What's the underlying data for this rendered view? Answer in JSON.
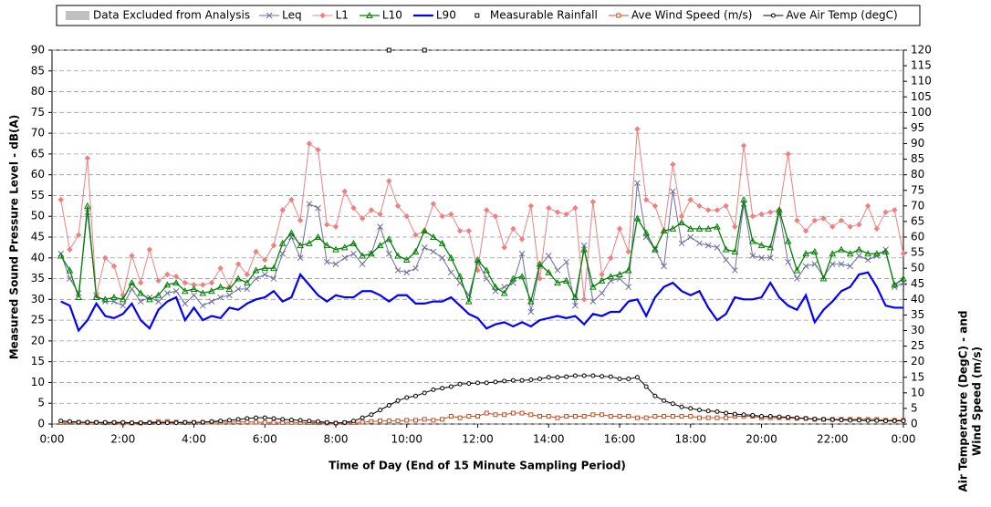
{
  "chart_data": {
    "type": "line",
    "xlabel": "Time of Day (End of 15 Minute Sampling Period)",
    "ylabel": "Measured Sound Pressure Level - dB(A)",
    "y2label": [
      "Air Temperature (DegC) - and",
      "Wind Speed (m/s)"
    ],
    "excluded_legend": {
      "name": "Data Excluded from Analysis",
      "color": "#c0c0c0"
    },
    "xlim": [
      0,
      24
    ],
    "xticks": [
      {
        "value": 0,
        "label": "0:00"
      },
      {
        "value": 2,
        "label": "2:00"
      },
      {
        "value": 4,
        "label": "4:00"
      },
      {
        "value": 6,
        "label": "6:00"
      },
      {
        "value": 8,
        "label": "8:00"
      },
      {
        "value": 10,
        "label": "10:00"
      },
      {
        "value": 12,
        "label": "12:00"
      },
      {
        "value": 14,
        "label": "14:00"
      },
      {
        "value": 16,
        "label": "16:00"
      },
      {
        "value": 18,
        "label": "18:00"
      },
      {
        "value": 20,
        "label": "20:00"
      },
      {
        "value": 22,
        "label": "22:00"
      },
      {
        "value": 24,
        "label": "0:00"
      }
    ],
    "ylim": [
      0,
      90
    ],
    "yticks": [
      0,
      5,
      10,
      15,
      20,
      25,
      30,
      35,
      40,
      45,
      50,
      55,
      60,
      65,
      70,
      75,
      80,
      85,
      90
    ],
    "y2lim": [
      0,
      120
    ],
    "y2ticks": [
      0,
      5,
      10,
      15,
      20,
      25,
      30,
      35,
      40,
      45,
      50,
      55,
      60,
      65,
      70,
      75,
      80,
      85,
      90,
      95,
      100,
      105,
      110,
      115,
      120
    ],
    "grid": true,
    "x": [
      0.25,
      0.5,
      0.75,
      1,
      1.25,
      1.5,
      1.75,
      2,
      2.25,
      2.5,
      2.75,
      3,
      3.25,
      3.5,
      3.75,
      4,
      4.25,
      4.5,
      4.75,
      5,
      5.25,
      5.5,
      5.75,
      6,
      6.25,
      6.5,
      6.75,
      7,
      7.25,
      7.5,
      7.75,
      8,
      8.25,
      8.5,
      8.75,
      9,
      9.25,
      9.5,
      9.75,
      10,
      10.25,
      10.5,
      10.75,
      11,
      11.25,
      11.5,
      11.75,
      12,
      12.25,
      12.5,
      12.75,
      13,
      13.25,
      13.5,
      13.75,
      14,
      14.25,
      14.5,
      14.75,
      15,
      15.25,
      15.5,
      15.75,
      16,
      16.25,
      16.5,
      16.75,
      17,
      17.25,
      17.5,
      17.75,
      18,
      18.25,
      18.5,
      18.75,
      19,
      19.25,
      19.5,
      19.75,
      20,
      20.25,
      20.5,
      20.75,
      21,
      21.25,
      21.5,
      21.75,
      22,
      22.25,
      22.5,
      22.75,
      23,
      23.25,
      23.5,
      23.75,
      24
    ],
    "series": [
      {
        "name": "Leq",
        "color": "#6e6e9e",
        "marker": "x",
        "width": 1,
        "values": [
          41,
          35,
          31.5,
          51,
          31,
          29.5,
          29.5,
          28.5,
          32.5,
          29.5,
          30.5,
          29.5,
          31.5,
          32,
          29,
          31,
          28.5,
          29.5,
          30.5,
          31,
          32.5,
          32.5,
          35,
          36,
          35,
          41,
          45,
          40,
          53,
          52,
          39,
          38.5,
          40,
          41,
          38.5,
          41,
          47.5,
          41,
          37,
          36.5,
          37.5,
          42.5,
          41.5,
          40,
          36.5,
          34,
          31,
          39,
          35,
          32,
          33,
          34,
          41,
          27,
          38,
          40.5,
          37,
          39,
          28.5,
          43,
          29.5,
          31.5,
          34.5,
          35,
          33,
          58,
          45,
          42,
          38,
          56,
          43.5,
          45,
          43.5,
          43,
          42.5,
          39.5,
          37,
          53,
          40.5,
          40,
          40,
          51,
          39,
          35,
          38,
          38.5,
          35.5,
          38.5,
          38.5,
          38,
          40.5,
          39.5,
          40.5,
          42,
          33,
          34
        ]
      },
      {
        "name": "L1",
        "color": "#f08080",
        "marker": "diamond",
        "width": 1,
        "values": [
          54,
          42,
          45.5,
          64,
          31,
          40,
          38,
          31,
          40.5,
          34,
          42,
          34.5,
          36,
          35.5,
          34,
          33.5,
          33.5,
          34,
          37.5,
          33,
          38.5,
          36,
          41.5,
          39.5,
          43,
          51.5,
          54,
          49,
          67.5,
          66,
          48,
          47.5,
          56,
          52,
          49.5,
          51.5,
          50.5,
          58.5,
          52.5,
          50,
          45.5,
          46.5,
          53,
          50,
          50.5,
          46.5,
          46.5,
          37,
          51.5,
          50,
          42.5,
          47,
          44.5,
          52.5,
          35,
          52,
          51,
          50.5,
          52,
          30,
          53.5,
          36,
          40,
          47,
          41.5,
          71,
          54,
          52.5,
          46.5,
          62.5,
          50,
          54,
          52.5,
          51.5,
          51.5,
          52.5,
          47.5,
          67,
          50,
          50.5,
          51,
          51.5,
          65,
          49,
          46.5,
          49,
          49.5,
          47.5,
          49,
          47.5,
          48,
          52.5,
          47,
          51,
          51.5,
          41
        ]
      },
      {
        "name": "L10",
        "color": "#008000",
        "marker": "triangle",
        "width": 1.3,
        "values": [
          40.5,
          37,
          30.5,
          52.5,
          30.5,
          30,
          30.5,
          30,
          34,
          31.5,
          30,
          31,
          33.5,
          34,
          32,
          32.5,
          31.5,
          32,
          33,
          32.5,
          35,
          34,
          37,
          37.5,
          37.5,
          43.5,
          46,
          43,
          43.5,
          45,
          43,
          42,
          42.5,
          43.5,
          40.5,
          41,
          43,
          44.5,
          40.5,
          39.5,
          41.5,
          46.5,
          45,
          43.5,
          40,
          35.5,
          29.5,
          39.5,
          37,
          33,
          31.5,
          35,
          35.5,
          29.5,
          38.5,
          36.5,
          34,
          34.5,
          30.5,
          42,
          33,
          34.5,
          35.5,
          36,
          37,
          49.5,
          46,
          42,
          46.5,
          47,
          48.5,
          47,
          47,
          47,
          47.5,
          42,
          41.5,
          54,
          44,
          43,
          42.5,
          51.5,
          44,
          37,
          41,
          41.5,
          35,
          41,
          42,
          41,
          42,
          41,
          41,
          41.5,
          33.5,
          35
        ]
      },
      {
        "name": "L90",
        "color": "#0000ff",
        "marker": "none",
        "width": 2.2,
        "values": [
          29.5,
          28.5,
          22.5,
          25,
          29,
          26,
          25.5,
          26.5,
          29,
          25,
          23,
          27.5,
          29.5,
          30.5,
          25,
          28,
          25,
          26,
          25.5,
          28,
          27.5,
          29,
          30,
          30.5,
          32,
          29.5,
          30.5,
          36,
          33.5,
          31,
          29.5,
          31,
          30.5,
          30.5,
          32,
          32,
          31,
          29.5,
          31,
          31,
          29,
          29,
          29.5,
          29.5,
          30.5,
          28.5,
          26.5,
          25.5,
          23,
          24,
          24.5,
          23.5,
          24.5,
          23.5,
          25,
          25.5,
          26,
          25.5,
          26,
          24,
          26.5,
          26,
          27,
          27,
          29.5,
          30,
          26,
          30.5,
          33,
          34,
          32,
          31,
          32,
          28,
          25,
          26.5,
          30.5,
          30,
          30,
          30.5,
          34,
          30.5,
          28.5,
          27.5,
          31,
          24.5,
          27.5,
          29.5,
          32,
          33,
          36,
          36.5,
          33,
          28.5,
          28,
          28
        ]
      },
      {
        "name": "Measurable Rainfall",
        "color": "#000000",
        "marker": "square",
        "width": 0,
        "x": [
          9.5,
          10.5
        ],
        "values": [
          90,
          90
        ]
      },
      {
        "name": "Ave Wind Speed (m/s)",
        "color": "#c05020",
        "marker": "square",
        "width": 1,
        "axis": "y2",
        "values": [
          0.5,
          0.5,
          0.5,
          0.4,
          0.5,
          0.4,
          0.4,
          0.3,
          0.3,
          0.3,
          0.5,
          0.8,
          0.8,
          0.6,
          0.5,
          0.5,
          0.5,
          0.6,
          0.6,
          0.6,
          0.7,
          0.7,
          0.6,
          0.5,
          0.5,
          0.5,
          0.5,
          0.5,
          0.5,
          0.4,
          0.3,
          0.3,
          0.4,
          0.5,
          0.6,
          0.8,
          1,
          1,
          1,
          1.2,
          1.2,
          1.5,
          1.2,
          1.5,
          2.5,
          2,
          2.5,
          2.5,
          3.5,
          3,
          3,
          3.5,
          3.5,
          3,
          2.5,
          2.5,
          2,
          2.5,
          2.5,
          2.5,
          3,
          3,
          2.5,
          2.5,
          2.5,
          2,
          2,
          2.5,
          2.5,
          2.5,
          2.5,
          2.5,
          2,
          2,
          2,
          2,
          2.5,
          2.5,
          2.5,
          2,
          2,
          2,
          2,
          1.8,
          1.8,
          1.5,
          1.5,
          1.5,
          1.5,
          1.5,
          1.5,
          1.5,
          1.5,
          1.2,
          1.2,
          1.2
        ]
      },
      {
        "name": "Ave Air Temp (degC)",
        "color": "#000000",
        "marker": "circle",
        "width": 1,
        "axis": "y2",
        "values": [
          1,
          0.8,
          0.6,
          0.6,
          0.5,
          0.5,
          0.5,
          0.5,
          0.4,
          0.4,
          0.4,
          0.4,
          0.4,
          0.4,
          0.5,
          0.5,
          0.6,
          0.8,
          1,
          1.2,
          1.5,
          1.8,
          2,
          2,
          1.8,
          1.5,
          1.3,
          1.2,
          1,
          0.8,
          0.5,
          0.3,
          0.5,
          1,
          2,
          3,
          4.5,
          6,
          7.5,
          8.5,
          9,
          10,
          11,
          11.5,
          12,
          12.8,
          13,
          13.2,
          13.2,
          13.5,
          13.8,
          14,
          14,
          14.2,
          14.5,
          15,
          15,
          15.2,
          15.5,
          15.5,
          15.5,
          15.3,
          15.2,
          14.5,
          14.5,
          15,
          12,
          9,
          7.5,
          6.5,
          5.5,
          5,
          4.5,
          4.2,
          4,
          3.5,
          3.2,
          3,
          2.8,
          2.5,
          2.5,
          2.3,
          2.2,
          2,
          1.8,
          1.6,
          1.5,
          1.4,
          1.3,
          1.2,
          1.2,
          1.1,
          1.1,
          1,
          1,
          1
        ]
      }
    ]
  }
}
